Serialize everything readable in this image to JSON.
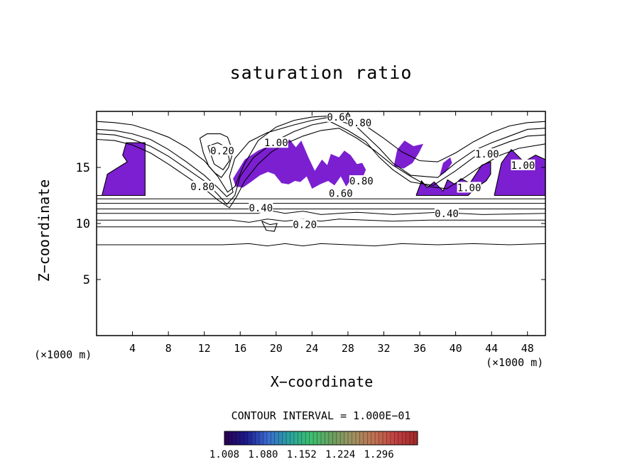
{
  "chart_data": {
    "type": "heatmap",
    "title": "saturation ratio",
    "xlabel": "X−coordinate",
    "ylabel": "Z−coordinate",
    "x_unit_label": "(×1000 m)",
    "xlim": [
      0,
      50
    ],
    "ylim": [
      0,
      20
    ],
    "x_ticks": [
      4,
      8,
      12,
      16,
      20,
      24,
      28,
      32,
      36,
      40,
      44,
      48
    ],
    "y_ticks": [
      5,
      10,
      15
    ],
    "contour_interval_text": "CONTOUR INTERVAL = 1.000E−01",
    "contour_levels": [
      0.2,
      0.3,
      0.4,
      0.5,
      0.6,
      0.7,
      0.8,
      0.9,
      1.0
    ],
    "contour_labels": [
      {
        "text": "0.60",
        "x": 27,
        "y": 19.5
      },
      {
        "text": "0.80",
        "x": 29.3,
        "y": 19.0
      },
      {
        "text": "0.20",
        "x": 14,
        "y": 16.5
      },
      {
        "text": "1.00",
        "x": 20,
        "y": 17.2
      },
      {
        "text": "1.00",
        "x": 43.5,
        "y": 16.2
      },
      {
        "text": "1.00",
        "x": 47.5,
        "y": 15.2
      },
      {
        "text": "1.00",
        "x": 41.5,
        "y": 13.2
      },
      {
        "text": "0.80",
        "x": 11.8,
        "y": 13.3
      },
      {
        "text": "0.80",
        "x": 29.5,
        "y": 13.8
      },
      {
        "text": "0.60",
        "x": 27.2,
        "y": 12.7
      },
      {
        "text": "0.40",
        "x": 18.3,
        "y": 11.4
      },
      {
        "text": "0.40",
        "x": 39,
        "y": 10.9
      },
      {
        "text": "0.20",
        "x": 23.2,
        "y": 9.9
      }
    ],
    "supersaturated_regions": [
      {
        "x": [
          0,
          0.6,
          1.2,
          3.4,
          2.9,
          3.3,
          5.4,
          5.4,
          0
        ],
        "y": [
          12.5,
          12.5,
          14.4,
          15.5,
          16.1,
          17.2,
          17.2,
          12.5,
          12.5
        ],
        "closed": true
      },
      {
        "x": [
          15.2,
          16.5,
          18,
          18.8,
          19.5,
          20.5,
          21.5,
          22.2,
          22.8,
          23.6,
          24.3,
          25.1,
          25.7,
          26.1,
          27,
          27.6,
          28.3,
          29,
          29.6,
          30,
          29.3,
          28.6,
          27.8,
          27.2,
          26.5,
          25.8,
          24.9,
          24,
          23.4,
          22.7,
          22.1,
          21.4,
          20.6,
          19.8,
          19.1,
          18.2,
          17.2,
          16.3,
          15.5
        ],
        "y": [
          14,
          15.7,
          16.5,
          16.8,
          17.6,
          16.9,
          17.5,
          16.8,
          17.4,
          15.9,
          14.7,
          15.7,
          15.2,
          16.2,
          15.9,
          16.5,
          16.1,
          15.3,
          15.4,
          14.8,
          13.4,
          14.2,
          13.3,
          14.2,
          13.4,
          13.8,
          13.5,
          13.1,
          14.2,
          13.7,
          13.8,
          13.5,
          13.6,
          14.4,
          14.6,
          14.3,
          13.7,
          13.2,
          13.3
        ],
        "closed": true
      },
      {
        "x": [
          35.6,
          39.1,
          41.4,
          42.1,
          43.4,
          43.9,
          43.9,
          42.9,
          42.5,
          41.6,
          40.6,
          39.9,
          39.1,
          38.6,
          37.6,
          36.8,
          36.2,
          35.6
        ],
        "y": [
          12.5,
          12.5,
          12.5,
          13.1,
          13.8,
          14.4,
          15.5,
          15.2,
          14.7,
          13.6,
          14,
          13.5,
          13.9,
          12.9,
          13.7,
          13.2,
          13.8,
          12.5
        ],
        "closed": true
      },
      {
        "x": [
          44.3,
          45.7,
          50,
          50,
          48.9,
          47.6,
          46.2,
          45.1,
          44.3
        ],
        "y": [
          12.5,
          12.5,
          12.5,
          15.7,
          16.1,
          15.5,
          16.6,
          15.4,
          12.5
        ],
        "closed": true
      },
      {
        "x": [
          33.1,
          34.2,
          35.2,
          35.9,
          36.4,
          35.3,
          34.3,
          33.5,
          33.1
        ],
        "y": [
          15.1,
          14.9,
          15.4,
          16.3,
          17.1,
          16.9,
          17.4,
          16.6,
          15.1
        ],
        "closed": true
      },
      {
        "x": [
          38.2,
          38.9,
          39.6,
          39.4,
          38.6,
          38.2
        ],
        "y": [
          14.2,
          14.6,
          15.4,
          15.9,
          15.4,
          14.2
        ],
        "closed": true
      }
    ],
    "contour_lines": [
      {
        "x": [
          0,
          50
        ],
        "y": [
          12.2,
          12.2
        ]
      },
      {
        "x": [
          0,
          50
        ],
        "y": [
          11.8,
          11.8
        ]
      },
      {
        "x": [
          0,
          50
        ],
        "y": [
          11.3,
          11.3
        ]
      },
      {
        "x": [
          0,
          18,
          19,
          21,
          23,
          25,
          27,
          29,
          33,
          38,
          43,
          50
        ],
        "y": [
          10.9,
          10.9,
          11.2,
          10.9,
          11.1,
          10.8,
          10.9,
          11,
          10.8,
          11,
          10.8,
          10.9
        ]
      },
      {
        "x": [
          0,
          15,
          17,
          19,
          21,
          23,
          25,
          27,
          30,
          33,
          37,
          41,
          45,
          50
        ],
        "y": [
          10.3,
          10.3,
          10.1,
          10.4,
          10.2,
          10.4,
          10.2,
          10.4,
          10.3,
          10.2,
          10.3,
          10.3,
          10.3,
          10.3
        ]
      },
      {
        "x": [
          0,
          50
        ],
        "y": [
          9.7,
          9.7
        ]
      },
      {
        "x": [
          0,
          14,
          17,
          19,
          21,
          23,
          25,
          28,
          31,
          34,
          38,
          42,
          46,
          50
        ],
        "y": [
          8.1,
          8.1,
          8.2,
          8.0,
          8.2,
          8.0,
          8.2,
          8.1,
          8.0,
          8.2,
          8.1,
          8.2,
          8.1,
          8.2
        ]
      },
      {
        "x": [
          0,
          2,
          4,
          6,
          8,
          10,
          12,
          13.5,
          14.5,
          15.2,
          14.8,
          15.4,
          17,
          19,
          22,
          24,
          26,
          29,
          31.5,
          33,
          35,
          38,
          40,
          42,
          44,
          46,
          48,
          50
        ],
        "y": [
          18.4,
          18.3,
          18,
          17.5,
          16.6,
          15.5,
          14.3,
          13.2,
          12.4,
          12.8,
          14.2,
          15.8,
          17.3,
          18.1,
          18.8,
          19.2,
          19.5,
          18.6,
          16.7,
          15.4,
          14.3,
          14.1,
          15.4,
          16.5,
          17.2,
          17.8,
          18.4,
          18.5
        ]
      },
      {
        "x": [
          0,
          2,
          4,
          6,
          8,
          10,
          12,
          13.5,
          14.5,
          15.4,
          16,
          17.5,
          19,
          20.5,
          22,
          24,
          26,
          28,
          30,
          31.5,
          33,
          35,
          37.5,
          40,
          42,
          44,
          46,
          48,
          50
        ],
        "y": [
          18.0,
          17.9,
          17.5,
          16.9,
          16,
          14.9,
          13.8,
          12.6,
          11.7,
          12.5,
          14.2,
          15.9,
          16.8,
          17.6,
          18.2,
          18.8,
          19.1,
          18.3,
          17.3,
          15.9,
          14.8,
          13.7,
          13.4,
          14.7,
          15.9,
          16.7,
          17.3,
          17.8,
          17.9
        ]
      },
      {
        "x": [
          0,
          2,
          4,
          6,
          8,
          10,
          12,
          13.5,
          14.8,
          15.6,
          16.5,
          18,
          19.5,
          21,
          23,
          25,
          27,
          29,
          31,
          33,
          35,
          37,
          39,
          41,
          43,
          45,
          47,
          50
        ],
        "y": [
          17.5,
          17.4,
          17,
          16.3,
          15.3,
          14.2,
          13.1,
          12.1,
          11.4,
          12.4,
          13.8,
          15.3,
          16.4,
          17.1,
          17.8,
          18.3,
          18.5,
          17.6,
          16.5,
          15.2,
          14.2,
          13.3,
          13.1,
          14.1,
          15.2,
          16.1,
          16.7,
          17.1
        ]
      },
      {
        "x": [
          0,
          2,
          4,
          6,
          8,
          10,
          12,
          13.5,
          14.6,
          15.4,
          16.4,
          18,
          20,
          22,
          24,
          26,
          28,
          30,
          32,
          34,
          36,
          38,
          40,
          42,
          44,
          46,
          48,
          50
        ],
        "y": [
          19.1,
          19,
          18.8,
          18.3,
          17.7,
          16.8,
          15.6,
          14.2,
          12.8,
          13.3,
          15.2,
          17.4,
          18.6,
          19.2,
          19.5,
          19.6,
          19.4,
          18.7,
          17.6,
          16.4,
          15.6,
          15.5,
          16.3,
          17.3,
          18.1,
          18.7,
          19.0,
          19.1
        ]
      },
      {
        "x": [
          11.5,
          12.3,
          13.8,
          14.6,
          15.2,
          14.7,
          13.9,
          13.2,
          12.5,
          11.9,
          11.5
        ],
        "y": [
          17.6,
          18.0,
          18.0,
          17.7,
          16.4,
          15.0,
          14.1,
          14.5,
          15.1,
          16.3,
          17.6
        ]
      },
      {
        "x": [
          12.4,
          13.5,
          14.5,
          14.8,
          14.1,
          13.1,
          12.4
        ],
        "y": [
          16.9,
          17.2,
          16.8,
          15.6,
          14.8,
          15.3,
          16.9
        ]
      },
      {
        "x": [
          18.4,
          19.3,
          20.1,
          19.8,
          18.9,
          18.4
        ],
        "y": [
          10.2,
          9.9,
          10.0,
          9.3,
          9.4,
          10.2
        ]
      },
      {
        "x": [
          0,
          0.6,
          1.2,
          3.4,
          2.9,
          3.3,
          5.4,
          5.4,
          0
        ],
        "y": [
          12.5,
          12.5,
          14.4,
          15.5,
          16.1,
          17.2,
          17.2,
          12.5,
          12.5
        ]
      },
      {
        "x": [
          44.3,
          45.7,
          50,
          50,
          48.9,
          47.6,
          46.2,
          45.1,
          44.3
        ],
        "y": [
          12.5,
          12.5,
          12.5,
          15.7,
          16.1,
          15.5,
          16.6,
          15.4,
          12.5
        ]
      },
      {
        "x": [
          35.6,
          39.1,
          41.4,
          42.1,
          43.4,
          43.9,
          43.9,
          42.9,
          42.5,
          41.6,
          40.6,
          39.9,
          39.1,
          38.6,
          37.6,
          36.8,
          36.2,
          35.6
        ],
        "y": [
          12.5,
          12.5,
          12.5,
          13.1,
          13.8,
          14.4,
          15.5,
          15.2,
          14.7,
          13.6,
          14,
          13.5,
          13.9,
          12.9,
          13.7,
          13.2,
          13.8,
          12.5
        ]
      }
    ],
    "colorbar": {
      "min": 1.008,
      "max": 1.368,
      "tick_labels": [
        "1.008",
        "1.080",
        "1.152",
        "1.224",
        "1.296"
      ],
      "stops": [
        "#2a0050",
        "#1a1a8c",
        "#3a6ad0",
        "#2aa0a0",
        "#3ac070",
        "#6aa060",
        "#a09060",
        "#c07050",
        "#c04040",
        "#a02828"
      ]
    }
  },
  "colors": {
    "region_fill": "#7b1fd1",
    "region_core": "#3d3fd8",
    "contour_line": "#000000",
    "background": "#ffffff"
  }
}
